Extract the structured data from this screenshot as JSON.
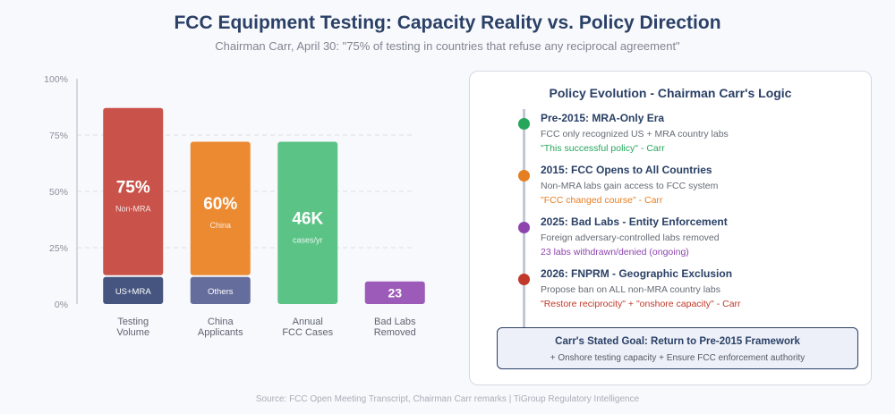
{
  "header": {
    "title": "FCC Equipment Testing: Capacity Reality vs. Policy Direction",
    "subtitle": "Chairman Carr, April 30: \"75% of testing in countries that refuse any reciprocal agreement\""
  },
  "chart_data": {
    "type": "bar",
    "ylim": [
      0,
      100
    ],
    "yticks": [
      "0%",
      "25%",
      "50%",
      "75%",
      "100%"
    ],
    "grid": true,
    "categories": [
      {
        "line1": "Testing",
        "line2": "Volume"
      },
      {
        "line1": "China",
        "line2": "Applicants"
      },
      {
        "line1": "Annual",
        "line2": "FCC Cases"
      },
      {
        "line1": "Bad Labs",
        "line2": "Removed"
      }
    ],
    "bars": [
      {
        "top_value": 75,
        "top_label": "75%",
        "top_sublabel": "Non-MRA",
        "top_color": "#c9534a",
        "bottom_value": 12,
        "bottom_label": "US+MRA",
        "bottom_color": "#45557f"
      },
      {
        "top_value": 60,
        "top_label": "60%",
        "top_sublabel": "China",
        "top_color": "#ec8a32",
        "bottom_value": 12,
        "bottom_label": "Others",
        "bottom_color": "#646d9c"
      },
      {
        "top_value": 72,
        "top_label": "46K",
        "top_sublabel": "cases/yr",
        "top_color": "#5cc387"
      },
      {
        "top_value": 10,
        "top_label": "23",
        "top_sublabel": "",
        "top_color": "#9c5bb8"
      }
    ]
  },
  "panel": {
    "title": "Policy Evolution - Chairman Carr's Logic",
    "events": [
      {
        "title": "Pre-2015: MRA-Only Era",
        "desc": "FCC only recognized US + MRA country labs",
        "quote": "\"This successful policy\" - Carr",
        "color": "#26a65b"
      },
      {
        "title": "2015: FCC Opens to All Countries",
        "desc": "Non-MRA labs gain access to FCC system",
        "quote": "\"FCC changed course\" - Carr",
        "color": "#e67e22"
      },
      {
        "title": "2025: Bad Labs - Entity Enforcement",
        "desc": "Foreign adversary-controlled labs removed",
        "quote": "23 labs withdrawn/denied (ongoing)",
        "color": "#8e44ad"
      },
      {
        "title": "2026: FNPRM - Geographic Exclusion",
        "desc": "Propose ban on ALL non-MRA country labs",
        "quote": "\"Restore reciprocity\" + \"onshore capacity\" - Carr",
        "color": "#c0392b"
      }
    ],
    "goal": {
      "title": "Carr's Stated Goal: Return to Pre-2015 Framework",
      "desc": "+ Onshore testing capacity + Ensure FCC enforcement authority"
    }
  },
  "source": "Source: FCC Open Meeting Transcript, Chairman Carr remarks | TiGroup Regulatory Intelligence"
}
